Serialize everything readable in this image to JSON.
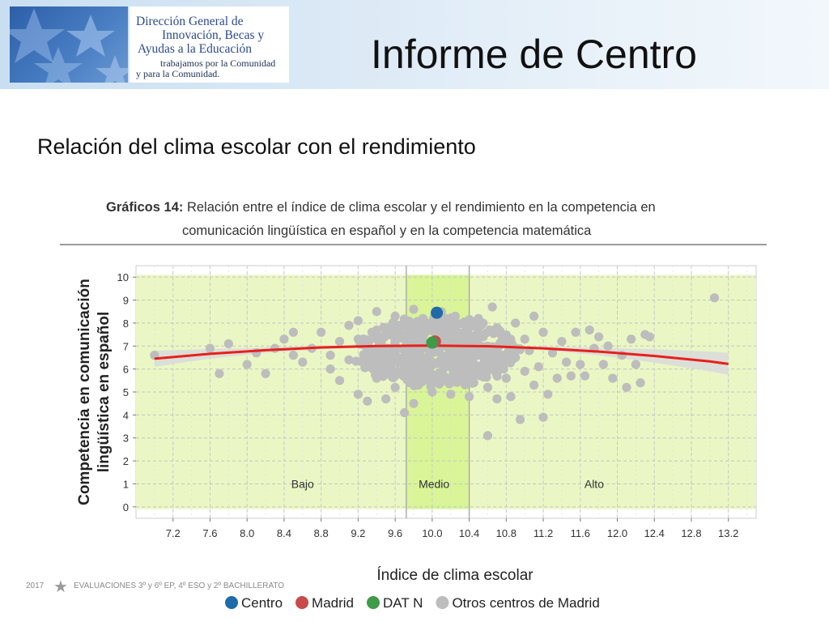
{
  "header": {
    "logo": {
      "line1": "Dirección General de",
      "line2": "Innovación, Becas y",
      "line3": "Ayudas a la Educación",
      "line4": "trabajamos por la Comunidad",
      "line5": "y para la Comunidad."
    },
    "title": "Informe de Centro"
  },
  "subtitle": "Relación del clima escolar con el rendimiento",
  "footer": {
    "year": "2017",
    "text": "EVALUACIONES 3º y 6º EP, 4º ESO y 2º BACHILLERATO"
  },
  "chart_data": {
    "type": "scatter",
    "title_label": "Gráficos 14:",
    "title_line1": "Relación entre el índice de clima escolar y el rendimiento en la competencia en",
    "title_line2": "comunicación lingüística en español y en la competencia matemática",
    "xlabel": "Índice de clima escolar",
    "ylabel_line1": "Competencia en comunicación",
    "ylabel_line2": "lingüística en español",
    "xlim": [
      6.8,
      13.5
    ],
    "ylim": [
      -0.5,
      10.5
    ],
    "x_ticks": [
      7.2,
      7.6,
      8.0,
      8.4,
      8.8,
      9.2,
      9.6,
      10.0,
      10.4,
      10.8,
      11.2,
      11.6,
      12.0,
      12.4,
      12.8,
      13.2
    ],
    "x_tick_labels": [
      "7.2",
      "7.6",
      "8.0",
      "8.4",
      "8.8",
      "9.2",
      "9.6",
      "10.0",
      "10.4",
      "10.8",
      "11.2",
      "11.6",
      "12.0",
      "12.4",
      "12.8",
      "13.2"
    ],
    "y_ticks": [
      0,
      1,
      2,
      3,
      4,
      5,
      6,
      7,
      8,
      9,
      10
    ],
    "y_tick_labels": [
      "0",
      "1",
      "2",
      "3",
      "4",
      "5",
      "6",
      "7",
      "8",
      "9",
      "10"
    ],
    "grid": true,
    "regions": [
      {
        "label": "Bajo",
        "x_from": 6.8,
        "x_to": 9.72,
        "color": "#eaf7c4"
      },
      {
        "label": "Medio",
        "x_from": 9.72,
        "x_to": 10.4,
        "color": "#d9f598"
      },
      {
        "label": "Alto",
        "x_from": 10.4,
        "x_to": 13.5,
        "color": "#eaf7c4"
      }
    ],
    "region_label_y": 1.0,
    "dividers": [
      9.72,
      10.4
    ],
    "trend": {
      "color": "#e8201a",
      "band_color": "#dadada",
      "x": [
        7.0,
        7.6,
        8.2,
        8.8,
        9.4,
        10.0,
        10.6,
        11.2,
        11.8,
        12.4,
        13.0,
        13.2
      ],
      "y": [
        6.45,
        6.66,
        6.82,
        6.94,
        7.0,
        7.02,
        6.99,
        6.9,
        6.76,
        6.57,
        6.33,
        6.22
      ],
      "band_low": [
        6.1,
        6.45,
        6.7,
        6.86,
        6.95,
        6.98,
        6.94,
        6.82,
        6.6,
        6.28,
        5.9,
        5.75
      ],
      "band_high": [
        6.8,
        6.87,
        6.94,
        7.02,
        7.05,
        7.06,
        7.04,
        6.98,
        6.92,
        6.86,
        6.76,
        6.7
      ]
    },
    "others": {
      "name": "Otros centros de Madrid",
      "color": "#bdbdbd",
      "points": [
        [
          7.0,
          6.6
        ],
        [
          7.6,
          6.9
        ],
        [
          7.7,
          5.8
        ],
        [
          7.8,
          7.1
        ],
        [
          8.0,
          6.2
        ],
        [
          8.1,
          6.7
        ],
        [
          8.2,
          5.8
        ],
        [
          8.3,
          6.9
        ],
        [
          8.4,
          7.3
        ],
        [
          8.5,
          6.6
        ],
        [
          8.5,
          7.6
        ],
        [
          8.6,
          6.3
        ],
        [
          8.7,
          6.9
        ],
        [
          8.8,
          7.6
        ],
        [
          8.9,
          6.0
        ],
        [
          8.9,
          6.6
        ],
        [
          9.0,
          7.2
        ],
        [
          9.0,
          5.5
        ],
        [
          9.1,
          7.9
        ],
        [
          9.1,
          6.4
        ],
        [
          9.2,
          4.9
        ],
        [
          9.2,
          7.3
        ],
        [
          9.2,
          8.1
        ],
        [
          9.3,
          4.6
        ],
        [
          9.3,
          6.9
        ],
        [
          9.3,
          6.1
        ],
        [
          9.4,
          5.6
        ],
        [
          9.4,
          7.7
        ],
        [
          9.4,
          8.5
        ],
        [
          9.45,
          7.1
        ],
        [
          9.5,
          4.7
        ],
        [
          9.5,
          6.4
        ],
        [
          9.5,
          5.9
        ],
        [
          9.55,
          7.5
        ],
        [
          9.6,
          8.3
        ],
        [
          9.6,
          6.7
        ],
        [
          9.6,
          5.2
        ],
        [
          9.65,
          7.9
        ],
        [
          9.7,
          4.1
        ],
        [
          9.7,
          6.2
        ],
        [
          9.7,
          7.3
        ],
        [
          9.75,
          5.7
        ],
        [
          9.8,
          8.6
        ],
        [
          9.8,
          6.9
        ],
        [
          9.8,
          4.5
        ],
        [
          9.85,
          7.6
        ],
        [
          9.85,
          5.3
        ],
        [
          9.9,
          6.5
        ],
        [
          9.9,
          8.2
        ],
        [
          9.9,
          7.0
        ],
        [
          9.95,
          5.9
        ],
        [
          9.95,
          7.8
        ],
        [
          10.0,
          6.3
        ],
        [
          10.0,
          8.0
        ],
        [
          10.0,
          5.0
        ],
        [
          10.05,
          7.4
        ],
        [
          10.05,
          6.8
        ],
        [
          10.1,
          5.5
        ],
        [
          10.1,
          8.5
        ],
        [
          10.15,
          6.1
        ],
        [
          10.15,
          7.6
        ],
        [
          10.2,
          4.9
        ],
        [
          10.2,
          7.0
        ],
        [
          10.25,
          8.3
        ],
        [
          10.25,
          6.6
        ],
        [
          10.3,
          5.8
        ],
        [
          10.3,
          7.5
        ],
        [
          10.35,
          6.3
        ],
        [
          10.35,
          8.0
        ],
        [
          10.4,
          4.8
        ],
        [
          10.4,
          7.2
        ],
        [
          10.45,
          5.4
        ],
        [
          10.45,
          6.8
        ],
        [
          10.5,
          8.2
        ],
        [
          10.5,
          6.0
        ],
        [
          10.55,
          7.4
        ],
        [
          10.6,
          3.1
        ],
        [
          10.6,
          5.2
        ],
        [
          10.6,
          6.6
        ],
        [
          10.65,
          8.7
        ],
        [
          10.7,
          4.7
        ],
        [
          10.7,
          7.8
        ],
        [
          10.75,
          6.2
        ],
        [
          10.8,
          5.6
        ],
        [
          10.8,
          7.1
        ],
        [
          10.85,
          4.8
        ],
        [
          10.9,
          8.0
        ],
        [
          10.9,
          6.5
        ],
        [
          10.95,
          3.8
        ],
        [
          11.0,
          5.9
        ],
        [
          11.0,
          7.3
        ],
        [
          11.05,
          6.8
        ],
        [
          11.1,
          8.3
        ],
        [
          11.1,
          5.3
        ],
        [
          11.15,
          6.1
        ],
        [
          11.2,
          3.9
        ],
        [
          11.2,
          7.6
        ],
        [
          11.25,
          4.9
        ],
        [
          11.3,
          6.7
        ],
        [
          11.35,
          5.6
        ],
        [
          11.4,
          7.2
        ],
        [
          11.45,
          6.3
        ],
        [
          11.5,
          5.7
        ],
        [
          11.55,
          7.6
        ],
        [
          11.6,
          6.2
        ],
        [
          11.65,
          5.7
        ],
        [
          11.7,
          7.7
        ],
        [
          11.75,
          6.9
        ],
        [
          11.8,
          7.4
        ],
        [
          11.85,
          6.2
        ],
        [
          11.9,
          7.0
        ],
        [
          11.95,
          5.6
        ],
        [
          12.05,
          6.6
        ],
        [
          12.1,
          5.2
        ],
        [
          12.15,
          7.3
        ],
        [
          12.2,
          6.2
        ],
        [
          12.25,
          5.4
        ],
        [
          12.3,
          7.5
        ],
        [
          12.35,
          7.4
        ],
        [
          13.05,
          9.1
        ]
      ]
    },
    "cloud": {
      "color": "#bdbdbd",
      "cx": 10.05,
      "cy": 6.75,
      "rx": 0.75,
      "ry": 1.55
    },
    "centro": {
      "name": "Centro",
      "color": "#1f6aa8",
      "x": 10.05,
      "y": 8.45
    },
    "madrid": {
      "name": "Madrid",
      "color": "#c84a4a",
      "x": 10.03,
      "y": 7.2
    },
    "datn": {
      "name": "DAT N",
      "color": "#3f9a4a",
      "x": 10.0,
      "y": 7.15
    },
    "legend": [
      {
        "name": "Centro",
        "color": "#1f6aa8"
      },
      {
        "name": "Madrid",
        "color": "#c84a4a"
      },
      {
        "name": "DAT N",
        "color": "#3f9a4a"
      },
      {
        "name": "Otros centros de Madrid",
        "color": "#bdbdbd"
      }
    ],
    "legend_position": "bottom"
  }
}
